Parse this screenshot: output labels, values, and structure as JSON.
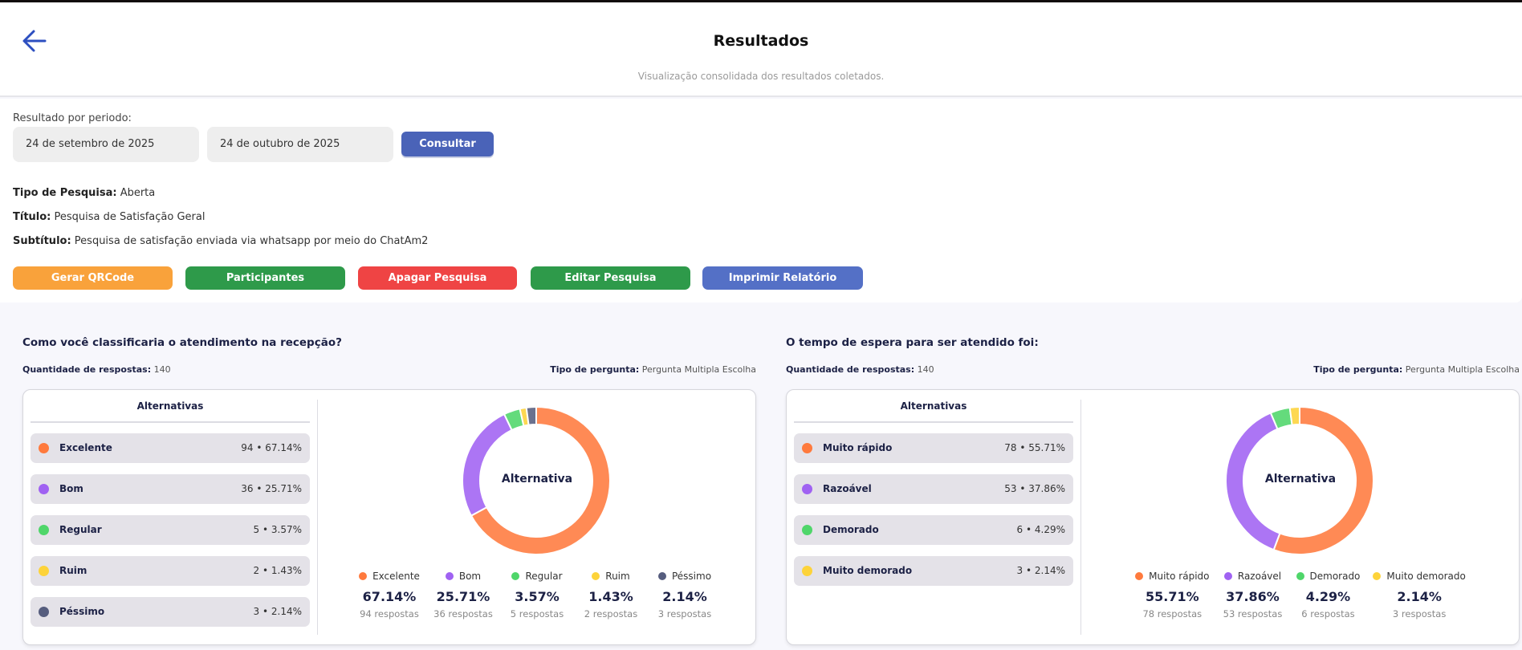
{
  "header": {
    "title": "Resultados",
    "subtitle": "Visualização consolidada dos resultados coletados.",
    "back_icon": "arrow-left-icon"
  },
  "filters": {
    "period_label": "Resultado por periodo:",
    "start_date": "24 de setembro de 2025",
    "end_date": "24 de outubro de 2025",
    "consult_label": "Consultar"
  },
  "survey": {
    "type_label": "Tipo de Pesquisa:",
    "type_value": "Aberta",
    "title_label": "Título:",
    "title_value": "Pesquisa de Satisfação Geral",
    "subtitle_label": "Subtítulo:",
    "subtitle_value": "Pesquisa de satisfação enviada via whatsapp por meio do ChatAm2"
  },
  "actions": [
    {
      "label": "Gerar QRCode",
      "color": "#f9a23b"
    },
    {
      "label": "Participantes",
      "color": "#2e9a4a"
    },
    {
      "label": "Apagar Pesquisa",
      "color": "#ef4444"
    },
    {
      "label": "Editar Pesquisa",
      "color": "#2e9a4a"
    },
    {
      "label": "Imprimir Relatório",
      "color": "#5470c6"
    }
  ],
  "questions": [
    {
      "question": "Como você classificaria o atendimento na recepção?",
      "count_label": "Quantidade de respostas:",
      "count": "140",
      "type_label": "Tipo de pergunta:",
      "type": "Pergunta Multipla Escolha",
      "alternatives_header": "Alternativas",
      "center_label": "Alternativa",
      "chart_data": {
        "type": "pie",
        "items": [
          {
            "label": "Excelente",
            "value": 94,
            "pct": "67.14%",
            "summary": "94 • 67.14%",
            "responses": "94 respostas",
            "color": "#ff7a3d"
          },
          {
            "label": "Bom",
            "value": 36,
            "pct": "25.71%",
            "summary": "36 • 25.71%",
            "responses": "36 respostas",
            "color": "#a062f2"
          },
          {
            "label": "Regular",
            "value": 5,
            "pct": "3.57%",
            "summary": "5 • 3.57%",
            "responses": "5 respostas",
            "color": "#4fd66a"
          },
          {
            "label": "Ruim",
            "value": 2,
            "pct": "1.43%",
            "summary": "2 • 1.43%",
            "responses": "2 respostas",
            "color": "#fdd33a"
          },
          {
            "label": "Péssimo",
            "value": 3,
            "pct": "2.14%",
            "summary": "3 • 2.14%",
            "responses": "3 respostas",
            "color": "#565d7e"
          }
        ]
      }
    },
    {
      "question": "O tempo de espera para ser atendido foi:",
      "count_label": "Quantidade de respostas:",
      "count": "140",
      "type_label": "Tipo de pergunta:",
      "type": "Pergunta Multipla Escolha",
      "alternatives_header": "Alternativas",
      "center_label": "Alternativa",
      "chart_data": {
        "type": "pie",
        "items": [
          {
            "label": "Muito rápido",
            "value": 78,
            "pct": "55.71%",
            "summary": "78 • 55.71%",
            "responses": "78 respostas",
            "color": "#ff7a3d"
          },
          {
            "label": "Razoável",
            "value": 53,
            "pct": "37.86%",
            "summary": "53 • 37.86%",
            "responses": "53 respostas",
            "color": "#a062f2"
          },
          {
            "label": "Demorado",
            "value": 6,
            "pct": "4.29%",
            "summary": "6 • 4.29%",
            "responses": "6 respostas",
            "color": "#4fd66a"
          },
          {
            "label": "Muito demorado",
            "value": 3,
            "pct": "2.14%",
            "summary": "3 • 2.14%",
            "responses": "3 respostas",
            "color": "#fdd33a"
          }
        ]
      }
    }
  ]
}
